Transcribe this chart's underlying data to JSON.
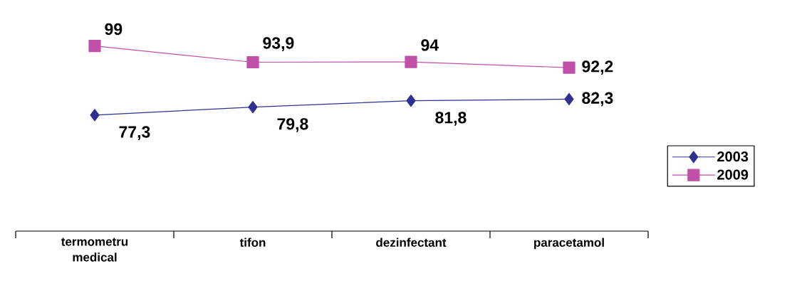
{
  "chart_data": {
    "type": "line",
    "categories": [
      "termometru medical",
      "tifon",
      "dezinfectant",
      "paracetamol"
    ],
    "series": [
      {
        "name": "2003",
        "color": "#2e3192",
        "marker": "diamond",
        "values": [
          77.3,
          79.8,
          81.8,
          82.3
        ],
        "value_labels": [
          "77,3",
          "79,8",
          "81,8",
          "82,3"
        ]
      },
      {
        "name": "2009",
        "color": "#c050a8",
        "marker": "square",
        "values": [
          99,
          93.9,
          94,
          92.2
        ],
        "value_labels": [
          "99",
          "93,9",
          "94",
          "92,2"
        ]
      }
    ],
    "legend": "right",
    "grid": false
  }
}
